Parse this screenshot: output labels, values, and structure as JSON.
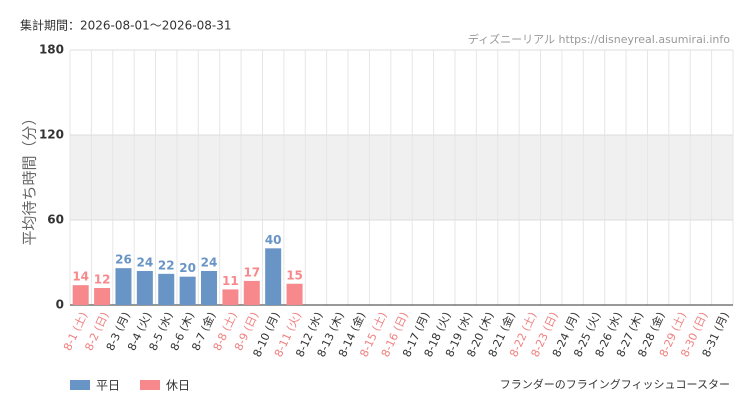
{
  "header": "集計期間：2026-08-01〜2026-08-31",
  "source": "ディズニーリアル https://disneyreal.asumirai.info",
  "chart_data": {
    "type": "bar",
    "ylabel": "平均待ち時間（分）",
    "annotation": "フランダーのフライングフィッシュコースター",
    "categories": [
      "8-1 (土)",
      "8-2 (日)",
      "8-3 (月)",
      "8-4 (火)",
      "8-5 (水)",
      "8-6 (木)",
      "8-7 (金)",
      "8-8 (土)",
      "8-9 (日)",
      "8-10 (月)",
      "8-11 (火)",
      "8-12 (水)",
      "8-13 (木)",
      "8-14 (金)",
      "8-15 (土)",
      "8-16 (日)",
      "8-17 (月)",
      "8-18 (火)",
      "8-19 (水)",
      "8-20 (木)",
      "8-21 (金)",
      "8-22 (土)",
      "8-23 (日)",
      "8-24 (月)",
      "8-25 (火)",
      "8-26 (水)",
      "8-27 (木)",
      "8-28 (金)",
      "8-29 (土)",
      "8-30 (日)",
      "8-31 (月)"
    ],
    "category_colors": [
      "#f08080",
      "#f08080",
      "#333333",
      "#333333",
      "#333333",
      "#333333",
      "#333333",
      "#f08080",
      "#f08080",
      "#333333",
      "#f08080",
      "#333333",
      "#333333",
      "#333333",
      "#f08080",
      "#f08080",
      "#333333",
      "#333333",
      "#333333",
      "#333333",
      "#333333",
      "#f08080",
      "#f08080",
      "#333333",
      "#333333",
      "#333333",
      "#333333",
      "#333333",
      "#f08080",
      "#f08080",
      "#333333"
    ],
    "series": [
      {
        "name": "平日",
        "color": "#6895c6",
        "values": [
          null,
          null,
          26,
          24,
          22,
          20,
          24,
          null,
          null,
          40,
          null,
          null,
          null,
          null,
          null,
          null,
          null,
          null,
          null,
          null,
          null,
          null,
          null,
          null,
          null,
          null,
          null,
          null,
          null,
          null,
          null
        ]
      },
      {
        "name": "休日",
        "color": "#f7898c",
        "values": [
          14,
          12,
          null,
          null,
          null,
          null,
          null,
          11,
          17,
          null,
          15,
          null,
          null,
          null,
          null,
          null,
          null,
          null,
          null,
          null,
          null,
          null,
          null,
          null,
          null,
          null,
          null,
          null,
          null,
          null,
          null
        ]
      }
    ],
    "ylim": [
      0,
      180
    ],
    "yticks": [
      0,
      60,
      120,
      180
    ],
    "band": [
      60,
      120
    ],
    "grid": true
  }
}
